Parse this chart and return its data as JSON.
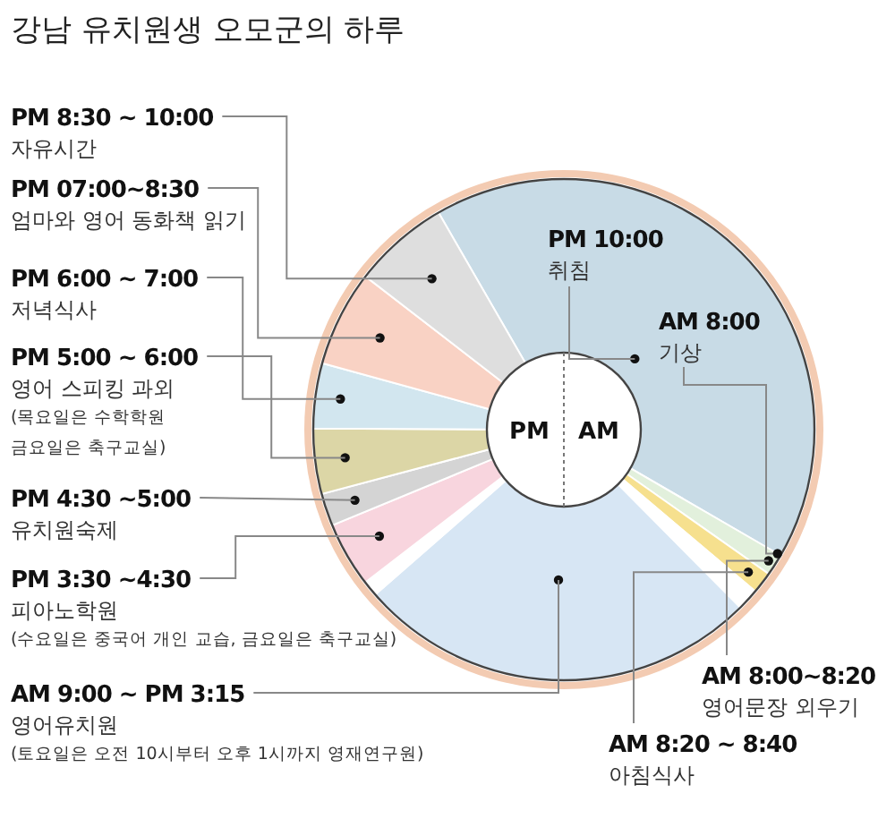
{
  "chart_data": {
    "type": "donut",
    "title": "강남 유치원생 오모군의 하루",
    "categories": [
      "PM 10:00\n취침",
      "AM 8:00~8:20\n영어문장 외우기",
      "AM 8:20 ~ 8:40\n아침식사",
      null,
      "AM 9:00 ~ PM 3:15\n영어유치원\n(토요일은 오전 10시부터 오후 1시까지 영재연구원)",
      null,
      "PM 3:30 ~4:30\n피아노학원\n(수요일은 중국어 개인 교습, 금요일은 축구교실)",
      "PM 4:30 ~5:00\n유치원숙제",
      "PM 5:00 ~ 6:00\n영어 스피킹 과외\n(목요일은 수학학원\n금요일은 축구교실)",
      "PM 6:00 ~ 7:00\n저녁식사",
      "PM 07:00~8:30\n엄마와 영어 동화책 읽기",
      "PM 8:30 ~ 10:00\n자유시간"
    ],
    "values": [
      41.7,
      1.4,
      1.4,
      1.4,
      26.0,
      1.0,
      4.2,
      2.1,
      4.2,
      4.2,
      6.2,
      6.2
    ],
    "colors": [
      "#c8dbe6",
      "#e2f0dc",
      "#f6e08e",
      "#ffffff",
      "#d7e6f4",
      "#ffffff",
      "#f8d5de",
      "#d4d4d4",
      "#dcd6a6",
      "#d2e6ef",
      "#f9d2c4",
      "#dedede"
    ],
    "annotations": [
      "PM",
      "AM",
      "AM 8:00\n기상"
    ]
  }
}
